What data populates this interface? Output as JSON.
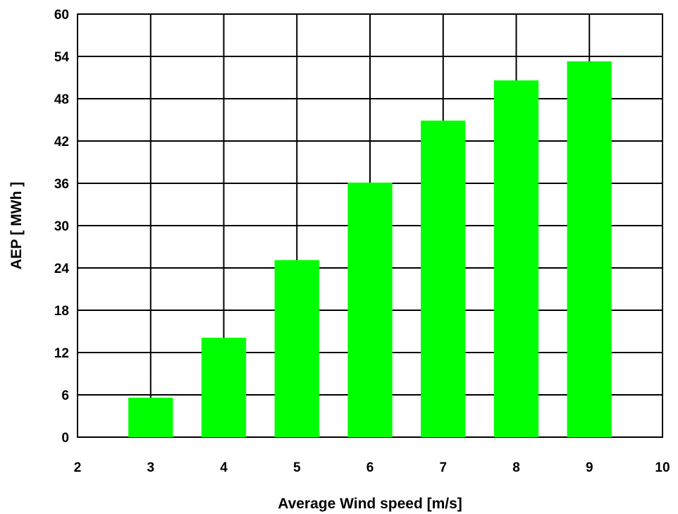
{
  "chart_data": {
    "type": "bar",
    "x": [
      3,
      4,
      5,
      6,
      7,
      8,
      9
    ],
    "values": [
      5.6,
      14.1,
      25.1,
      36.1,
      44.9,
      50.6,
      53.3
    ],
    "xlabel": "Average Wind speed [m/s]",
    "ylabel": "AEP [ MWh ]",
    "xlim": [
      2,
      10
    ],
    "ylim": [
      0,
      60
    ],
    "xticks": [
      2,
      3,
      4,
      5,
      6,
      7,
      8,
      9,
      10
    ],
    "yticks": [
      0,
      6,
      12,
      18,
      24,
      30,
      36,
      42,
      48,
      54,
      60
    ],
    "grid": true,
    "bar_color": "#00ff00"
  }
}
